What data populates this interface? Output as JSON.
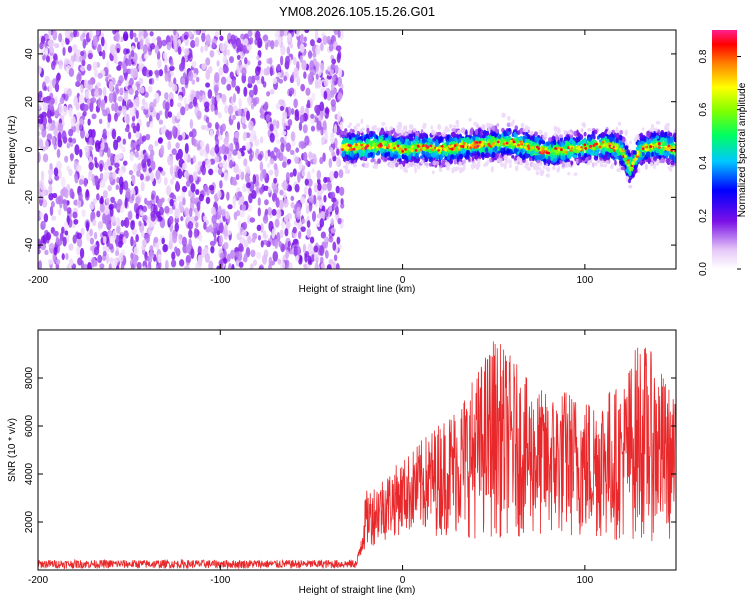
{
  "title": "YM08.2026.105.15.26.G01",
  "chart_data": [
    {
      "type": "heatmap",
      "xlabel": "Height of straight line (km)",
      "ylabel": "Frequency (Hz)",
      "xlim": [
        -200,
        150
      ],
      "ylim": [
        -50,
        50
      ],
      "xticks": [
        -200,
        -100,
        0,
        100
      ],
      "yticks": [
        -40,
        -20,
        0,
        20,
        40
      ],
      "colorbar": {
        "label": "Normalized spectral amplitude",
        "range": [
          0,
          0.9
        ],
        "ticks": [
          0.0,
          0.2,
          0.4,
          0.6,
          0.8
        ],
        "tick_labels": [
          "0.0",
          "0.2",
          "0.4",
          "0.6",
          "0.8"
        ]
      },
      "regions": [
        {
          "x_range": [
            -200,
            -33
          ],
          "freq_range": [
            -50,
            50
          ],
          "amplitude": [
            0.0,
            0.15
          ]
        },
        {
          "x_range": [
            -33,
            150
          ],
          "freq_range": [
            -8,
            12
          ],
          "amplitude": [
            0.1,
            0.9
          ]
        }
      ],
      "ridge": {
        "x": [
          -33,
          -20,
          -10,
          0,
          10,
          20,
          40,
          60,
          80,
          100,
          110,
          120,
          125,
          130,
          140,
          150
        ],
        "freq": [
          1,
          1,
          2,
          0,
          1,
          0,
          2,
          3,
          -1,
          1,
          2,
          0,
          -8,
          0,
          2,
          0
        ]
      },
      "grid": false
    },
    {
      "type": "line",
      "xlabel": "Height of straight line (km)",
      "ylabel": "SNR (10 * v/v)",
      "xlim": [
        -200,
        150
      ],
      "ylim": [
        0,
        10000
      ],
      "xticks": [
        -200,
        -100,
        0,
        100
      ],
      "yticks": [
        2000,
        4000,
        6000,
        8000
      ],
      "color": "#e8282a",
      "series": [
        {
          "x": [
            -200,
            -150,
            -100,
            -50,
            -25,
            -20,
            -10,
            0,
            10,
            20,
            30,
            40,
            50,
            60,
            70,
            80,
            90,
            100,
            110,
            120,
            130,
            140,
            150
          ],
          "envelope_low": [
            60,
            60,
            60,
            60,
            60,
            900,
            1200,
            1500,
            1500,
            1400,
            1400,
            1300,
            1300,
            1400,
            1300,
            1200,
            1300,
            1200,
            1200,
            1200,
            1200,
            1200,
            1200
          ],
          "envelope_high": [
            420,
            420,
            420,
            420,
            430,
            3300,
            4000,
            4600,
            5400,
            6200,
            7000,
            8200,
            9800,
            8900,
            7800,
            7400,
            7600,
            7200,
            7600,
            7700,
            9800,
            8700,
            7000
          ]
        }
      ],
      "grid": false
    }
  ]
}
